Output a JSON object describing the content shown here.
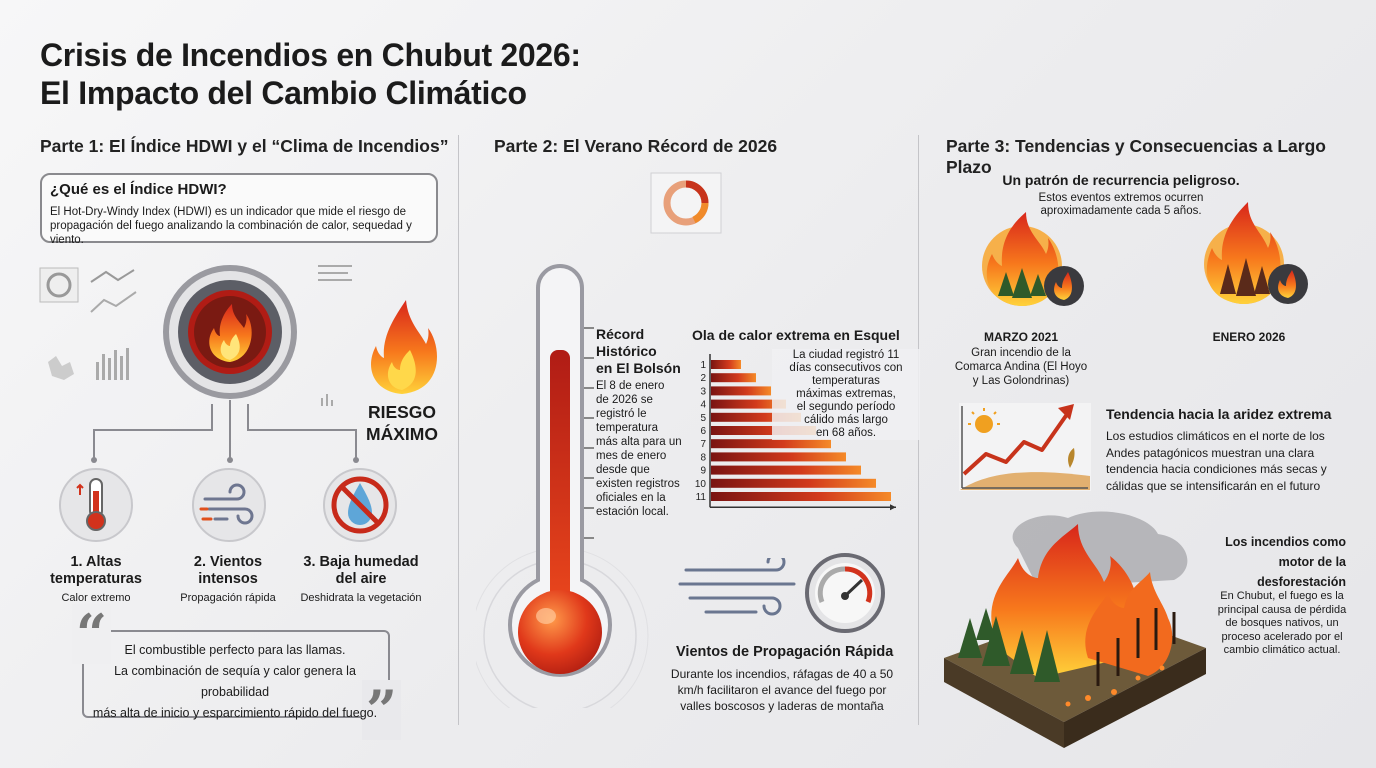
{
  "header": {
    "title_line1": "Crisis de Incendios en Chubut 2026:",
    "title_line2": "El Impacto del Cambio Climático"
  },
  "part1": {
    "heading": "Parte 1: El Índice HDWI y el “Clima de Incendios”",
    "what_title": "¿Qué es el Índice HDWI?",
    "what_text_1": "El Hot-Dry-Windy Index (HDWI) es un indicador que mide el riesgo de",
    "what_text_2": "propagación del fuego analizando la combinación de calor, sequedad y viento.",
    "risk_line1": "RIESGO",
    "risk_line2": "MÁXIMO",
    "factors": [
      {
        "title_1": "1. Altas",
        "title_2": "temperaturas",
        "sub": "Calor extremo",
        "icon": "thermometer-icon"
      },
      {
        "title_1": "2. Vientos",
        "title_2": "intensos",
        "sub": "Propagación rápida",
        "icon": "wind-icon"
      },
      {
        "title_1": "3. Baja humedad",
        "title_2": "del aire",
        "sub": "Deshidrata la vegetación",
        "icon": "no-water-icon"
      }
    ],
    "quote_1": "El combustible perfecto para las llamas.",
    "quote_2": "La combinación de sequía y calor genera la probabilidad",
    "quote_3": "más alta de inicio y esparcimiento rápido del fuego.",
    "open_quote": "“",
    "close_quote": "”"
  },
  "part2": {
    "heading": "Parte 2: El Verano Récord de 2026",
    "record_title_1": "Récord",
    "record_title_2": "Histórico",
    "record_title_3": "en El Bolsón",
    "record_text": [
      "El 8 de enero",
      "de 2026 se",
      "registró le",
      "temperatura",
      "más alta para un",
      "mes de enero",
      "desde que",
      "existen registros",
      "oficiales en la",
      "estación local."
    ],
    "heat_title": "Ola de calor extrema en Esquel",
    "heat_text": [
      "La ciudad registró 11",
      "días consecutivos con",
      "temperaturas",
      "máximas extremas,",
      "el segundo período",
      "cálido más largo",
      "en 68 años."
    ],
    "wind_title": "Vientos de Propagación Rápida",
    "wind_text_1": "Durante los incendios, ráfagas de 40 a 50",
    "wind_text_2": "km/h facilitaron el avance del fuego por",
    "wind_text_3": "valles boscosos y laderas de montaña",
    "accent_colors": [
      "#7a1412",
      "#a51f18",
      "#c83420",
      "#e05a22",
      "#f08a2a"
    ]
  },
  "chart_data": {
    "type": "bar",
    "orientation": "horizontal",
    "categories": [
      "1",
      "2",
      "3",
      "4",
      "5",
      "6",
      "7",
      "8",
      "9",
      "10",
      "11"
    ],
    "values": [
      2,
      3,
      4,
      5,
      6,
      7,
      8,
      9,
      10,
      11,
      12
    ],
    "title": "Ola de calor extrema en Esquel",
    "xlabel": "",
    "ylabel": "",
    "grid": false
  },
  "part3": {
    "heading": "Parte 3: Tendencias y Consecuencias a Largo Plazo",
    "pattern_title": "Un patrón de recurrencia peligroso.",
    "pattern_text_1": "Estos eventos extremos ocurren",
    "pattern_text_2": "aproximadamente cada 5 años.",
    "event1_date": "MARZO 2021",
    "event1_text": [
      "Gran incendio de la",
      "Comarca Andina (El Hoyo",
      "y Las Golondrinas)"
    ],
    "event2_date": "ENERO 2026",
    "arid_title": "Tendencia hacia la aridez extrema",
    "arid_text": [
      "Los estudios climáticos en el norte de los",
      "Andes patagónicos muestran una clara",
      "tendencia hacia condiciones más secas y",
      "cálidas que se intensificarán en el futuro"
    ],
    "defor_title": [
      "Los incendios como",
      "motor de la",
      "desforestación"
    ],
    "defor_text": [
      "En Chubut, el fuego es la",
      "principal causa de pérdida",
      "de bosques nativos, un",
      "proceso acelerado por el",
      "cambio climático actual."
    ]
  }
}
